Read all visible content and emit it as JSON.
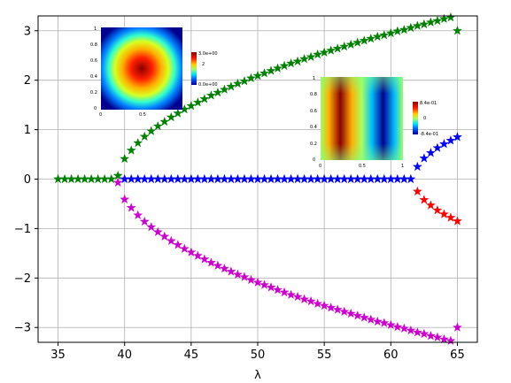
{
  "chart_data": {
    "type": "scatter",
    "title": "",
    "xlabel": "λ",
    "ylabel": "",
    "xlim": [
      33.5,
      66.5
    ],
    "ylim": [
      -3.3,
      3.3
    ],
    "xticks": [
      "35",
      "40",
      "45",
      "50",
      "55",
      "60",
      "65"
    ],
    "yticks": [
      "−3",
      "−2",
      "−1",
      "0",
      "1",
      "2",
      "3"
    ],
    "grid": true,
    "marker": "star",
    "series": [
      {
        "color": "#008000",
        "x": [
          35,
          35.5,
          36,
          36.5,
          37,
          37.5,
          38,
          38.5,
          39,
          39.5,
          40,
          40.5,
          41,
          41.5,
          42,
          42.5,
          43,
          43.5,
          44,
          44.5,
          45,
          45.5,
          46,
          46.5,
          47,
          47.5,
          48,
          48.5,
          49,
          49.5,
          50,
          50.5,
          51,
          51.5,
          52,
          52.5,
          53,
          53.5,
          54,
          54.5,
          55,
          55.5,
          56,
          56.5,
          57,
          57.5,
          58,
          58.5,
          59,
          59.5,
          60,
          60.5,
          61,
          61.5,
          62,
          62.5,
          63,
          63.5,
          64,
          64.5,
          65
        ],
        "y": [
          0,
          0,
          0,
          0,
          0,
          0,
          0,
          0,
          0,
          0.07,
          0.41,
          0.58,
          0.73,
          0.86,
          0.97,
          1.07,
          1.16,
          1.25,
          1.33,
          1.41,
          1.48,
          1.55,
          1.62,
          1.69,
          1.75,
          1.81,
          1.87,
          1.93,
          1.98,
          2.04,
          2.09,
          2.14,
          2.19,
          2.24,
          2.29,
          2.34,
          2.38,
          2.43,
          2.47,
          2.52,
          2.56,
          2.6,
          2.64,
          2.68,
          2.72,
          2.76,
          2.8,
          2.84,
          2.88,
          2.91,
          2.95,
          2.99,
          3.02,
          3.06,
          3.1,
          3.13,
          3.17,
          3.2,
          3.24,
          3.27,
          3.0
        ]
      },
      {
        "color": "#cc00cc",
        "x": [
          39.5,
          40,
          40.5,
          41,
          41.5,
          42,
          42.5,
          43,
          43.5,
          44,
          44.5,
          45,
          45.5,
          46,
          46.5,
          47,
          47.5,
          48,
          48.5,
          49,
          49.5,
          50,
          50.5,
          51,
          51.5,
          52,
          52.5,
          53,
          53.5,
          54,
          54.5,
          55,
          55.5,
          56,
          56.5,
          57,
          57.5,
          58,
          58.5,
          59,
          59.5,
          60,
          60.5,
          61,
          61.5,
          62,
          62.5,
          63,
          63.5,
          64,
          64.5,
          65
        ],
        "y": [
          -0.07,
          -0.41,
          -0.58,
          -0.73,
          -0.86,
          -0.97,
          -1.07,
          -1.16,
          -1.25,
          -1.33,
          -1.41,
          -1.48,
          -1.55,
          -1.62,
          -1.69,
          -1.75,
          -1.81,
          -1.87,
          -1.93,
          -1.98,
          -2.04,
          -2.09,
          -2.14,
          -2.19,
          -2.24,
          -2.29,
          -2.34,
          -2.38,
          -2.43,
          -2.47,
          -2.52,
          -2.56,
          -2.6,
          -2.64,
          -2.68,
          -2.72,
          -2.76,
          -2.8,
          -2.84,
          -2.88,
          -2.91,
          -2.95,
          -2.99,
          -3.02,
          -3.06,
          -3.1,
          -3.13,
          -3.17,
          -3.2,
          -3.24,
          -3.27,
          -3.0
        ]
      },
      {
        "color": "#0000ff",
        "x": [
          40,
          40.5,
          41,
          41.5,
          42,
          42.5,
          43,
          43.5,
          44,
          44.5,
          45,
          45.5,
          46,
          46.5,
          47,
          47.5,
          48,
          48.5,
          49,
          49.5,
          50,
          50.5,
          51,
          51.5,
          52,
          52.5,
          53,
          53.5,
          54,
          54.5,
          55,
          55.5,
          56,
          56.5,
          57,
          57.5,
          58,
          58.5,
          59,
          59.5,
          60,
          60.5,
          61,
          61.5,
          62,
          62.5,
          63,
          63.5,
          64,
          64.5,
          65
        ],
        "y": [
          0,
          0,
          0,
          0,
          0,
          0,
          0,
          0,
          0,
          0,
          0,
          0,
          0,
          0,
          0,
          0,
          0,
          0,
          0,
          0,
          0,
          0,
          0,
          0,
          0,
          0,
          0,
          0,
          0,
          0,
          0,
          0,
          0,
          0,
          0,
          0,
          0,
          0,
          0,
          0,
          0,
          0,
          0,
          0,
          0.25,
          0.42,
          0.53,
          0.63,
          0.71,
          0.78,
          0.85
        ]
      },
      {
        "color": "#ff0000",
        "x": [
          62,
          62.5,
          63,
          63.5,
          64,
          64.5,
          65
        ],
        "y": [
          -0.25,
          -0.42,
          -0.53,
          -0.63,
          -0.71,
          -0.78,
          -0.85
        ]
      }
    ],
    "insets": [
      {
        "pattern": "single-mode",
        "xticks": [
          "0",
          "0.5"
        ],
        "yticks": [
          "1",
          "0.8",
          "0.6",
          "0.4",
          "0.2",
          "0"
        ],
        "colorbar": [
          "3.0e+00",
          "2",
          "0.0e+00"
        ]
      },
      {
        "pattern": "two-mode",
        "xticks": [
          "0",
          "0.5",
          "1"
        ],
        "yticks": [
          "1",
          "0.8",
          "0.6",
          "0.4",
          "0.2",
          "0"
        ],
        "colorbar": [
          "8.4e-01",
          "0",
          "-8.4e-01"
        ]
      }
    ]
  }
}
